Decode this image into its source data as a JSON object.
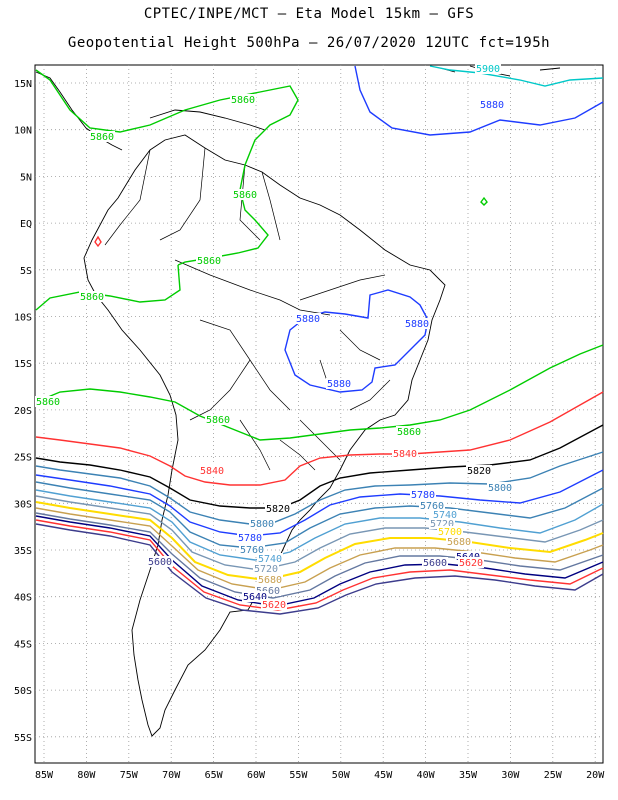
{
  "title_line1": "CPTEC/INPE/MCT –  Eta Model 15km – GFS",
  "title_line2": "Geopotential Height 500hPa – 26/07/2020 12UTC fct=195h",
  "lat_ticks": [
    "15N",
    "10N",
    "5N",
    "EQ",
    "5S",
    "10S",
    "15S",
    "20S",
    "25S",
    "30S",
    "35S",
    "40S",
    "45S",
    "50S",
    "55S"
  ],
  "lon_ticks": [
    "85W",
    "80W",
    "75W",
    "70W",
    "65W",
    "60W",
    "55W",
    "50W",
    "45W",
    "40W",
    "35W",
    "30W",
    "25W",
    "20W"
  ],
  "contour_colors": {
    "5900": "#00c8c8",
    "5880": "#1e3cff",
    "5860": "#00cc00",
    "5840": "#ff3232",
    "5820": "#000000",
    "5800": "#3c82b4",
    "5780": "#1e3cff",
    "5760": "#3c82b4",
    "5740": "#50a0d2",
    "5720": "#7896b4",
    "5700": "#ffdc00",
    "5680": "#c8a050",
    "5660": "#6478a0",
    "5640": "#000080",
    "5620": "#ff3232",
    "5600": "#3c3c8c"
  },
  "contour_labels": [
    {
      "text": "5900",
      "level": "5900"
    },
    {
      "text": "5880",
      "level": "5880"
    },
    {
      "text": "5880",
      "level": "5880"
    },
    {
      "text": "5880",
      "level": "5880"
    },
    {
      "text": "5880",
      "level": "5880"
    },
    {
      "text": "5860",
      "level": "5860"
    },
    {
      "text": "5860",
      "level": "5860"
    },
    {
      "text": "5860",
      "level": "5860"
    },
    {
      "text": "5860",
      "level": "5860"
    },
    {
      "text": "5860",
      "level": "5860"
    },
    {
      "text": "5860",
      "level": "5860"
    },
    {
      "text": "5860",
      "level": "5860"
    },
    {
      "text": "5860",
      "level": "5860"
    },
    {
      "text": "5840",
      "level": "5840"
    },
    {
      "text": "5840",
      "level": "5840"
    },
    {
      "text": "5820",
      "level": "5820"
    },
    {
      "text": "5820",
      "level": "5820"
    },
    {
      "text": "5800",
      "level": "5800"
    },
    {
      "text": "5800",
      "level": "5800"
    },
    {
      "text": "5780",
      "level": "5780"
    },
    {
      "text": "5780",
      "level": "5780"
    },
    {
      "text": "5760",
      "level": "5760"
    },
    {
      "text": "5760",
      "level": "5760"
    },
    {
      "text": "5740",
      "level": "5740"
    },
    {
      "text": "5740",
      "level": "5740"
    },
    {
      "text": "5720",
      "level": "5720"
    },
    {
      "text": "5720",
      "level": "5720"
    },
    {
      "text": "5700",
      "level": "5700"
    },
    {
      "text": "5680",
      "level": "5680"
    },
    {
      "text": "5680",
      "level": "5680"
    },
    {
      "text": "5660",
      "level": "5660"
    },
    {
      "text": "5640",
      "level": "5640"
    },
    {
      "text": "5640",
      "level": "5640"
    },
    {
      "text": "5620",
      "level": "5620"
    },
    {
      "text": "5620",
      "level": "5620"
    },
    {
      "text": "5600",
      "level": "5600"
    },
    {
      "text": "5600",
      "level": "5600"
    }
  ]
}
